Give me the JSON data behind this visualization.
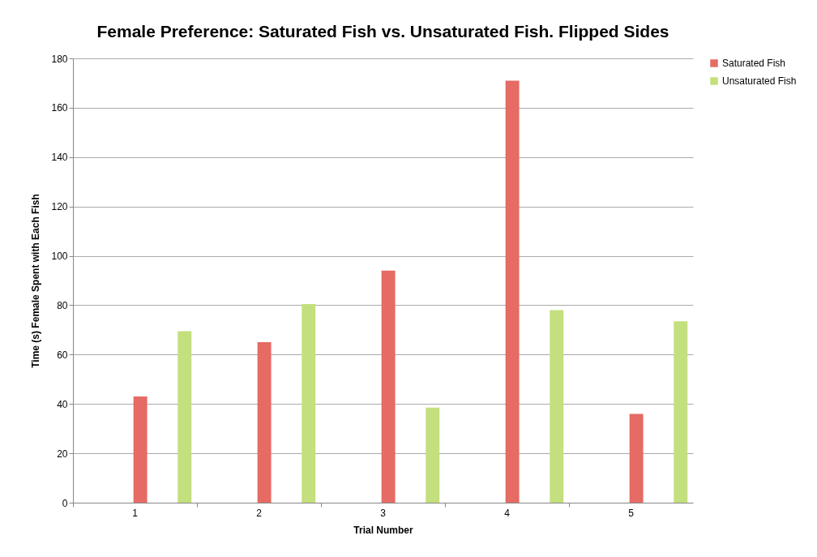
{
  "chart_data": {
    "type": "bar",
    "title": "Female Preference: Saturated Fish vs. Unsaturated Fish. Flipped Sides",
    "xlabel": "Trial Number",
    "ylabel": "Time (s) Female Spent with Each Fish",
    "categories": [
      "1",
      "2",
      "3",
      "4",
      "5"
    ],
    "series": [
      {
        "name": "Saturated Fish",
        "color": "#e56b64",
        "values": [
          43,
          65,
          94,
          171,
          36
        ]
      },
      {
        "name": "Unsaturated Fish",
        "color": "#c4df7d",
        "values": [
          69.5,
          80.5,
          38.5,
          78,
          73.5
        ]
      }
    ],
    "ylim": [
      0,
      180
    ],
    "yticks": [
      0,
      20,
      40,
      60,
      80,
      100,
      120,
      140,
      160,
      180
    ],
    "grid": "y",
    "legend": "right"
  }
}
